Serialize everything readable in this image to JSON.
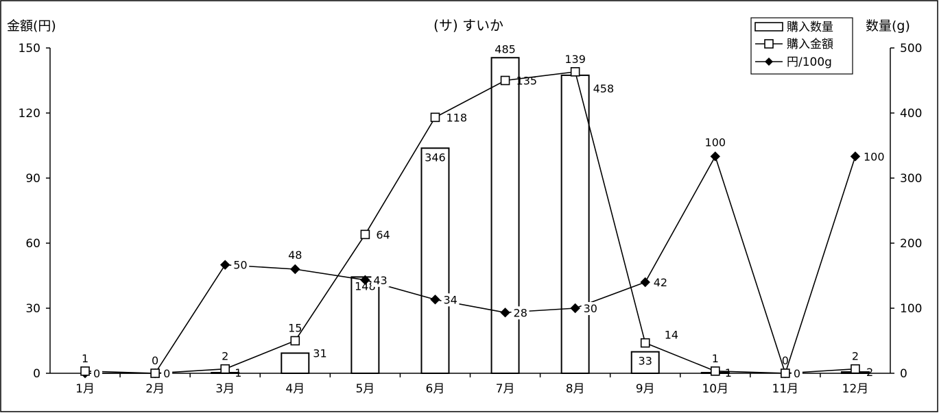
{
  "chart_data": {
    "type": "bar+line",
    "title": "(サ) すいか",
    "categories": [
      "1月",
      "2月",
      "3月",
      "4月",
      "5月",
      "6月",
      "7月",
      "8月",
      "9月",
      "10月",
      "11月",
      "12月"
    ],
    "y_left": {
      "label": "金額(円)",
      "range": [
        0,
        150
      ],
      "ticks": [
        0,
        30,
        60,
        90,
        120,
        150
      ]
    },
    "y_right": {
      "label": "数量(g)",
      "range": [
        0,
        500
      ],
      "ticks": [
        0,
        100,
        200,
        300,
        400,
        500
      ]
    },
    "series": [
      {
        "name": "購入数量",
        "type": "bar",
        "axis": "right",
        "values": [
          0,
          0,
          1,
          31,
          148,
          346,
          485,
          458,
          33,
          1,
          0,
          2
        ]
      },
      {
        "name": "購入金額",
        "type": "line",
        "marker": "square-open",
        "axis": "left",
        "values": [
          1,
          0,
          2,
          15,
          64,
          118,
          135,
          139,
          14,
          1,
          0,
          2
        ]
      },
      {
        "name": "円/100g",
        "type": "line",
        "marker": "diamond-filled",
        "axis": "left",
        "values": [
          0,
          0,
          50,
          48,
          43,
          34,
          28,
          30,
          42,
          100,
          0,
          100
        ]
      }
    ],
    "legend": "top-right"
  }
}
